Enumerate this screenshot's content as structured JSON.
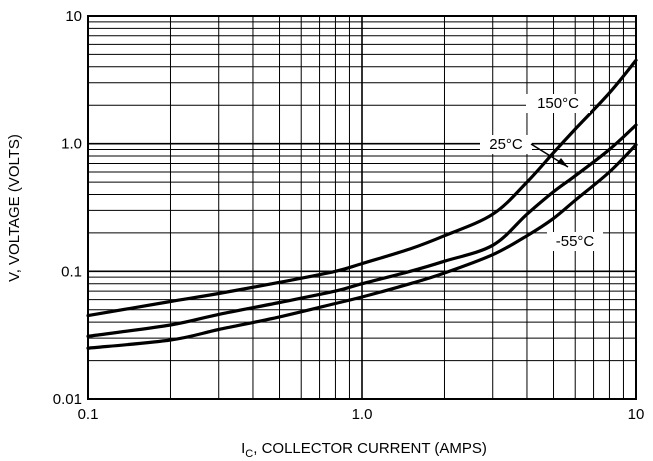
{
  "chart_data": {
    "type": "line",
    "title": "",
    "xlabel_main": "I",
    "xlabel_sub": "C",
    "xlabel_rest": ", COLLECTOR CURRENT (AMPS)",
    "ylabel": "V, VOLTAGE (VOLTS)",
    "xscale": "log",
    "yscale": "log",
    "xlim": [
      0.1,
      10
    ],
    "ylim": [
      0.01,
      10
    ],
    "grid": true,
    "x_tick_labels": [
      "0.1",
      "1.0",
      "10"
    ],
    "x_tick_values": [
      0.1,
      1,
      10
    ],
    "y_tick_labels": [
      "0.01",
      "0.1",
      "1.0",
      "10"
    ],
    "y_tick_values": [
      0.01,
      0.1,
      1,
      10
    ],
    "series": [
      {
        "name": "150°C",
        "x": [
          0.1,
          0.2,
          0.3,
          0.5,
          0.8,
          1.0,
          1.5,
          2.0,
          3.0,
          4.0,
          5.0,
          6.0,
          8.0,
          10.0
        ],
        "y": [
          0.045,
          0.058,
          0.067,
          0.082,
          0.1,
          0.115,
          0.15,
          0.19,
          0.28,
          0.5,
          0.85,
          1.3,
          2.5,
          4.5
        ]
      },
      {
        "name": "25°C",
        "x": [
          0.1,
          0.2,
          0.3,
          0.5,
          0.8,
          1.0,
          1.5,
          2.0,
          3.0,
          4.0,
          5.0,
          6.0,
          8.0,
          10.0
        ],
        "y": [
          0.031,
          0.038,
          0.046,
          0.057,
          0.07,
          0.08,
          0.1,
          0.12,
          0.16,
          0.28,
          0.42,
          0.56,
          0.9,
          1.4
        ]
      },
      {
        "name": "-55°C",
        "x": [
          0.1,
          0.2,
          0.3,
          0.5,
          0.8,
          1.0,
          1.5,
          2.0,
          3.0,
          4.0,
          5.0,
          6.0,
          8.0,
          10.0
        ],
        "y": [
          0.025,
          0.029,
          0.035,
          0.044,
          0.056,
          0.063,
          0.08,
          0.097,
          0.135,
          0.19,
          0.26,
          0.36,
          0.6,
          0.98
        ]
      }
    ],
    "line_color": "#000000",
    "grid_color": "#000000"
  }
}
